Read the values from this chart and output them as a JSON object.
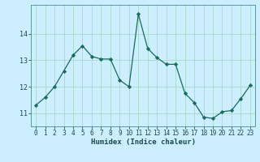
{
  "x": [
    0,
    1,
    2,
    3,
    4,
    5,
    6,
    7,
    8,
    9,
    10,
    11,
    12,
    13,
    14,
    15,
    16,
    17,
    18,
    19,
    20,
    21,
    22,
    23
  ],
  "y": [
    11.3,
    11.6,
    12.0,
    12.6,
    13.2,
    13.55,
    13.15,
    13.05,
    13.05,
    12.25,
    12.0,
    14.75,
    13.45,
    13.1,
    12.85,
    12.85,
    11.75,
    11.4,
    10.85,
    10.8,
    11.05,
    11.1,
    11.55,
    12.05
  ],
  "line_color": "#1a6b5e",
  "marker": "D",
  "marker_size": 2.2,
  "bg_color": "#cceeff",
  "grid_color": "#aaddcc",
  "xlabel": "Humidex (Indice chaleur)",
  "yticks": [
    11,
    12,
    13,
    14
  ],
  "xticks": [
    0,
    1,
    2,
    3,
    4,
    5,
    6,
    7,
    8,
    9,
    10,
    11,
    12,
    13,
    14,
    15,
    16,
    17,
    18,
    19,
    20,
    21,
    22,
    23
  ],
  "xlim": [
    -0.5,
    23.5
  ],
  "ylim": [
    10.5,
    15.1
  ],
  "tick_fontsize": 5.5,
  "xlabel_fontsize": 6.5
}
